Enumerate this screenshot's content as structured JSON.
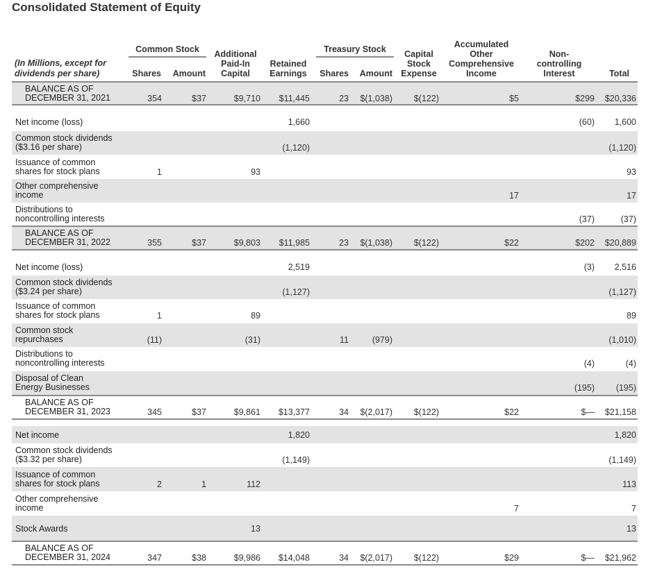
{
  "title": "Consolidated Statement of Equity",
  "header": {
    "units_note_1": "(In Millions, except for",
    "units_note_2": "dividends per share)",
    "common_stock": "Common Stock",
    "treasury_stock": "Treasury Stock",
    "shares": "Shares",
    "amount": "Amount",
    "apic": [
      "Additional",
      "Paid-In",
      "Capital"
    ],
    "retained": [
      "Retained",
      "Earnings"
    ],
    "t_shares": "Shares",
    "t_amount": "Amount",
    "capital_stock_expense": [
      "Capital",
      "Stock",
      "Expense"
    ],
    "aoci": [
      "Accumulated",
      "Other",
      "Comprehensive",
      "Income"
    ],
    "nci": [
      "Non-",
      "controlling",
      "Interest"
    ],
    "total": "Total"
  },
  "rows": [
    {
      "label": [
        "BALANCE AS OF",
        "DECEMBER 31, 2021"
      ],
      "balance": true,
      "shade": true,
      "shares": "354",
      "amount": "$37",
      "apic": "$9,710",
      "retained": "$11,445",
      "t_shares": "23",
      "t_amount": "$(1,038)",
      "cse": "$(122)",
      "aoci": "$5",
      "nci": "$299",
      "total": "$20,336"
    },
    {
      "label": [
        "Net income (loss)"
      ],
      "shares": "",
      "amount": "",
      "apic": "",
      "retained": "1,660",
      "t_shares": "",
      "t_amount": "",
      "cse": "",
      "aoci": "",
      "nci": "(60)",
      "total": "1,600"
    },
    {
      "label": [
        "Common stock dividends",
        "($3.16 per share)"
      ],
      "shade": true,
      "shares": "",
      "amount": "",
      "apic": "",
      "retained": "(1,120)",
      "t_shares": "",
      "t_amount": "",
      "cse": "",
      "aoci": "",
      "nci": "",
      "total": "(1,120)"
    },
    {
      "label": [
        "Issuance of common",
        "shares for stock plans"
      ],
      "shares": "1",
      "amount": "",
      "apic": "93",
      "retained": "",
      "t_shares": "",
      "t_amount": "",
      "cse": "",
      "aoci": "",
      "nci": "",
      "total": "93"
    },
    {
      "label": [
        "Other comprehensive",
        "income"
      ],
      "shade": true,
      "shares": "",
      "amount": "",
      "apic": "",
      "retained": "",
      "t_shares": "",
      "t_amount": "",
      "cse": "",
      "aoci": "17",
      "nci": "",
      "total": "17"
    },
    {
      "label": [
        "Distributions to",
        "noncontrolling interests"
      ],
      "shares": "",
      "amount": "",
      "apic": "",
      "retained": "",
      "t_shares": "",
      "t_amount": "",
      "cse": "",
      "aoci": "",
      "nci": "(37)",
      "total": "(37)"
    },
    {
      "label": [
        "BALANCE AS OF",
        "DECEMBER 31, 2022"
      ],
      "balance": true,
      "shade": true,
      "shares": "355",
      "amount": "$37",
      "apic": "$9,803",
      "retained": "$11,985",
      "t_shares": "23",
      "t_amount": "$(1,038)",
      "cse": "$(122)",
      "aoci": "$22",
      "nci": "$202",
      "total": "$20,889"
    },
    {
      "label": [
        "Net income (loss)"
      ],
      "shares": "",
      "amount": "",
      "apic": "",
      "retained": "2,519",
      "t_shares": "",
      "t_amount": "",
      "cse": "",
      "aoci": "",
      "nci": "(3)",
      "total": "2,516"
    },
    {
      "label": [
        "Common stock dividends",
        "($3.24 per share)"
      ],
      "shade": true,
      "shares": "",
      "amount": "",
      "apic": "",
      "retained": "(1,127)",
      "t_shares": "",
      "t_amount": "",
      "cse": "",
      "aoci": "",
      "nci": "",
      "total": "(1,127)"
    },
    {
      "label": [
        "Issuance of common",
        "shares for stock plans"
      ],
      "shares": "1",
      "amount": "",
      "apic": "89",
      "retained": "",
      "t_shares": "",
      "t_amount": "",
      "cse": "",
      "aoci": "",
      "nci": "",
      "total": "89"
    },
    {
      "label": [
        "Common stock",
        "repurchases"
      ],
      "shade": true,
      "shares": "(11)",
      "amount": "",
      "apic": "(31)",
      "retained": "",
      "t_shares": "11",
      "t_amount": "(979)",
      "cse": "",
      "aoci": "",
      "nci": "",
      "total": "(1,010)"
    },
    {
      "label": [
        "Distributions to",
        "noncontrolling interests"
      ],
      "shares": "",
      "amount": "",
      "apic": "",
      "retained": "",
      "t_shares": "",
      "t_amount": "",
      "cse": "",
      "aoci": "",
      "nci": "(4)",
      "total": "(4)"
    },
    {
      "label": [
        "Disposal of Clean",
        "Energy Businesses"
      ],
      "shade": true,
      "shares": "",
      "amount": "",
      "apic": "",
      "retained": "",
      "t_shares": "",
      "t_amount": "",
      "cse": "",
      "aoci": "",
      "nci": "(195)",
      "total": "(195)"
    },
    {
      "label": [
        "BALANCE AS OF",
        "DECEMBER 31, 2023"
      ],
      "balance": true,
      "shares": "345",
      "amount": "$37",
      "apic": "$9,861",
      "retained": "$13,377",
      "t_shares": "34",
      "t_amount": "$(2,017)",
      "cse": "$(122)",
      "aoci": "$22",
      "nci": "$—",
      "total": "$21,158"
    },
    {
      "label": [
        "Net income"
      ],
      "shade": true,
      "shares": "",
      "amount": "",
      "apic": "",
      "retained": "1,820",
      "t_shares": "",
      "t_amount": "",
      "cse": "",
      "aoci": "",
      "nci": "",
      "total": "1,820"
    },
    {
      "label": [
        "Common stock dividends",
        "($3.32 per share)"
      ],
      "shares": "",
      "amount": "",
      "apic": "",
      "retained": "(1,149)",
      "t_shares": "",
      "t_amount": "",
      "cse": "",
      "aoci": "",
      "nci": "",
      "total": "(1,149)"
    },
    {
      "label": [
        "Issuance of common",
        "shares for stock plans"
      ],
      "shade": true,
      "shares": "2",
      "amount": "1",
      "apic": "112",
      "retained": "",
      "t_shares": "",
      "t_amount": "",
      "cse": "",
      "aoci": "",
      "nci": "",
      "total": "113"
    },
    {
      "label": [
        "Other comprehensive",
        "income"
      ],
      "shares": "",
      "amount": "",
      "apic": "",
      "retained": "",
      "t_shares": "",
      "t_amount": "",
      "cse": "",
      "aoci": "7",
      "nci": "",
      "total": "7"
    },
    {
      "label": [
        "Stock Awards"
      ],
      "shade": true,
      "shares": "",
      "amount": "",
      "apic": "13",
      "retained": "",
      "t_shares": "",
      "t_amount": "",
      "cse": "",
      "aoci": "",
      "nci": "",
      "total": "13"
    },
    {
      "label": [
        "BALANCE AS OF",
        "DECEMBER 31, 2024"
      ],
      "balance": true,
      "shares": "347",
      "amount": "$38",
      "apic": "$9,986",
      "retained": "$14,048",
      "t_shares": "34",
      "t_amount": "$(2,017)",
      "cse": "$(122)",
      "aoci": "$29",
      "nci": "$—",
      "total": "$21,962"
    }
  ]
}
